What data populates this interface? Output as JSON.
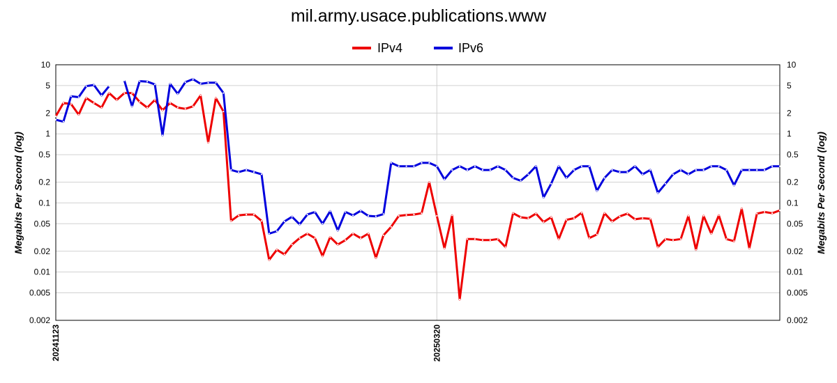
{
  "chart_data": {
    "type": "line",
    "title": "mil.army.usace.publications.www",
    "ylabel": "Megabits Per Second (log)",
    "yscale": "log",
    "ylim": [
      0.002,
      10
    ],
    "yticks": [
      10,
      5,
      2,
      1,
      0.5,
      0.2,
      0.1,
      0.05,
      0.02,
      0.01,
      0.005,
      0.002
    ],
    "ytick_labels": [
      "10",
      "5",
      "2",
      "1",
      "0.5",
      "0.2",
      "0.1",
      "0.05",
      "0.02",
      "0.01",
      "0.005",
      "0.002"
    ],
    "xtick_labels": [
      "20241123",
      "20250320"
    ],
    "xtick_index": [
      0,
      50
    ],
    "n_points": 96,
    "grid": "vertical-and-horizontal",
    "legend_position": "top-center",
    "series": [
      {
        "name": "IPv4",
        "color": "#ee0000",
        "values": [
          1.8,
          2.8,
          2.7,
          1.9,
          3.3,
          2.8,
          2.4,
          3.9,
          3.1,
          3.9,
          3.9,
          2.9,
          2.4,
          3.1,
          2.2,
          2.8,
          2.4,
          2.3,
          2.5,
          3.6,
          0.75,
          3.3,
          2.1,
          0.055,
          0.066,
          0.068,
          0.068,
          0.055,
          0.015,
          0.021,
          0.018,
          0.025,
          0.031,
          0.036,
          0.031,
          0.017,
          0.032,
          0.025,
          0.029,
          0.036,
          0.031,
          0.036,
          0.016,
          0.034,
          0.045,
          0.065,
          0.067,
          0.068,
          0.071,
          0.2,
          0.065,
          0.022,
          0.066,
          0.004,
          0.03,
          0.03,
          0.029,
          0.029,
          0.03,
          0.023,
          0.071,
          0.062,
          0.06,
          0.07,
          0.053,
          0.062,
          0.03,
          0.057,
          0.06,
          0.072,
          0.031,
          0.035,
          0.071,
          0.054,
          0.064,
          0.07,
          0.058,
          0.06,
          0.059,
          0.023,
          0.03,
          0.029,
          0.03,
          0.065,
          0.021,
          0.065,
          0.036,
          0.066,
          0.03,
          0.028,
          0.083,
          0.022,
          0.07,
          0.074,
          0.071,
          0.078
        ]
      },
      {
        "name": "IPv6",
        "color": "#0000dd",
        "values": [
          1.6,
          1.5,
          3.5,
          3.4,
          4.9,
          5.1,
          3.6,
          4.9,
          null,
          5.9,
          2.5,
          5.8,
          5.7,
          5.2,
          0.95,
          5.3,
          3.8,
          5.6,
          6.2,
          5.3,
          5.5,
          5.5,
          3.9,
          0.3,
          0.28,
          0.3,
          0.28,
          0.26,
          0.036,
          0.039,
          0.054,
          0.063,
          0.049,
          0.068,
          0.074,
          0.05,
          0.076,
          0.04,
          0.074,
          0.066,
          0.077,
          0.065,
          0.064,
          0.069,
          0.38,
          0.34,
          0.34,
          0.34,
          0.38,
          0.38,
          0.34,
          0.22,
          0.3,
          0.34,
          0.3,
          0.34,
          0.3,
          0.3,
          0.34,
          0.3,
          0.23,
          0.21,
          0.26,
          0.34,
          0.12,
          0.19,
          0.34,
          0.23,
          0.3,
          0.34,
          0.34,
          0.15,
          0.23,
          0.3,
          0.28,
          0.28,
          0.34,
          0.26,
          0.3,
          0.14,
          0.19,
          0.26,
          0.3,
          0.26,
          0.3,
          0.3,
          0.34,
          0.34,
          0.3,
          0.18,
          0.3,
          0.3,
          0.3,
          0.3,
          0.34,
          0.34
        ]
      }
    ]
  }
}
